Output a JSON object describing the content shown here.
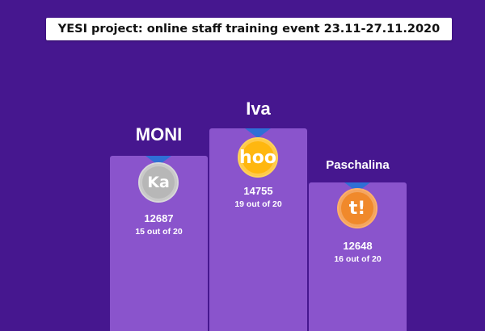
{
  "banner": {
    "title": "YESI project: online staff training event 23.11-27.11.2020"
  },
  "podium": [
    {
      "rank": 1,
      "name": "Iva",
      "medal_text": "hoo",
      "medal_color": "#ffb70f",
      "score": "14755",
      "correct": "19 out of 20"
    },
    {
      "rank": 2,
      "name": "MONI",
      "medal_text": "Ka",
      "medal_color": "#b7b7b7",
      "score": "12687",
      "correct": "15 out of 20"
    },
    {
      "rank": 3,
      "name": "Paschalina",
      "medal_text": "t!",
      "medal_color": "#f0892b",
      "score": "12648",
      "correct": "16 out of 20"
    }
  ],
  "colors": {
    "background": "#46178f",
    "podium": "#8a54cc",
    "ribbon": "#2f6fd6"
  }
}
